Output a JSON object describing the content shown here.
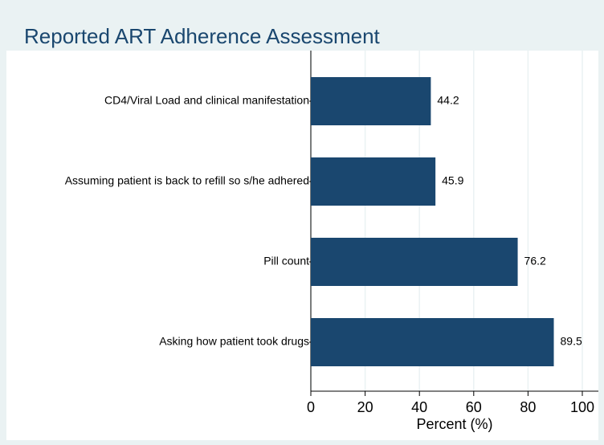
{
  "chart_data": {
    "type": "barh",
    "title": "Reported ART Adherence Assessment",
    "categories": [
      "CD4/Viral Load and clinical manifestation",
      "Assuming patient is back to refill so s/he adhered",
      "Pill count",
      "Asking how patient took drugs"
    ],
    "values": [
      44.2,
      45.9,
      76.2,
      89.5
    ],
    "color": "#1a476f",
    "xlabel": "Percent (%)",
    "xlim": [
      0,
      100
    ],
    "xticks": [
      0,
      20,
      40,
      60,
      80,
      100
    ],
    "grid": true
  }
}
